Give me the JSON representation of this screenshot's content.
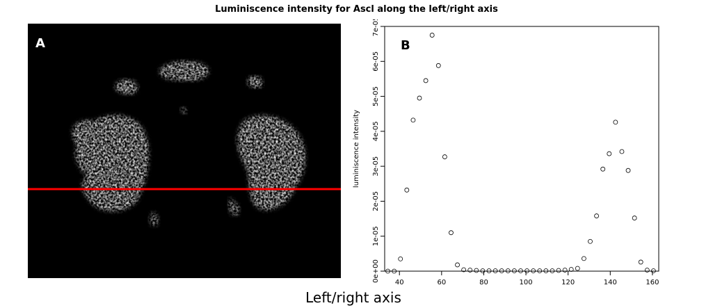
{
  "title": "Luminiscence intensity for Ascl along the left/right axis",
  "panel_a": {
    "label": "A",
    "line_color": "#ff0000",
    "background": "#000000"
  },
  "panel_b": {
    "label": "B"
  },
  "xlabel": "Left/right axis",
  "chart_data": {
    "type": "scatter",
    "title": "Luminiscence intensity for Ascl along the left/right axis",
    "xlabel": "Left/right axis",
    "ylabel": "luminiscence intensity",
    "xlim": [
      33,
      163
    ],
    "ylim": [
      0,
      7e-05
    ],
    "xticks": [
      40,
      60,
      80,
      100,
      120,
      140,
      160
    ],
    "xtick_labels": [
      "40",
      "60",
      "80",
      "100",
      "120",
      "140",
      "160"
    ],
    "yticks": [
      0,
      1e-05,
      2e-05,
      3e-05,
      4e-05,
      5e-05,
      6e-05,
      7e-05
    ],
    "ytick_labels": [
      "0e+00",
      "1e-05",
      "2e-05",
      "3e-05",
      "4e-05",
      "5e-05",
      "6e-05",
      "7e-05"
    ],
    "grid": false,
    "marker": "open-circle",
    "x": [
      34.5,
      37.5,
      40.5,
      43.5,
      46.5,
      49.5,
      52.5,
      55.5,
      58.5,
      61.5,
      64.5,
      67.5,
      70.5,
      73.5,
      76.5,
      79.5,
      82.5,
      85.5,
      88.5,
      91.5,
      94.5,
      97.5,
      100.5,
      103.5,
      106.5,
      109.5,
      112.5,
      115.5,
      118.5,
      121.5,
      124.5,
      127.5,
      130.5,
      133.5,
      136.5,
      139.5,
      142.5,
      145.5,
      148.5,
      151.5,
      154.5,
      157.5,
      160.5
    ],
    "y": [
      0.0,
      0.0,
      3.5e-06,
      2.32e-05,
      4.32e-05,
      4.95e-05,
      5.45e-05,
      6.75e-05,
      5.88e-05,
      3.27e-05,
      1.1e-05,
      1.8e-06,
      4e-07,
      3e-07,
      2e-07,
      1e-07,
      1e-07,
      1e-07,
      1e-07,
      1e-07,
      1e-07,
      1e-07,
      1e-07,
      1e-07,
      1e-07,
      1e-07,
      1e-07,
      2e-07,
      3e-07,
      5e-07,
      8e-07,
      3.6e-06,
      8.5e-06,
      1.58e-05,
      2.92e-05,
      3.36e-05,
      4.26e-05,
      3.42e-05,
      2.88e-05,
      1.52e-05,
      2.6e-06,
      3e-07,
      1e-07
    ]
  }
}
